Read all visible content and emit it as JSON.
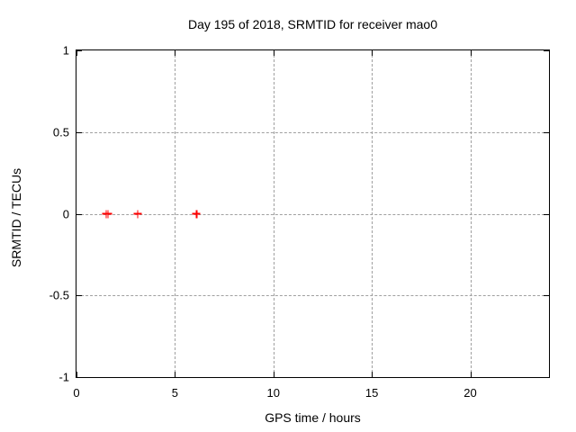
{
  "chart_data": {
    "type": "scatter",
    "title": "Day 195 of 2018, SRMTID for receiver mao0",
    "xlabel": "GPS time / hours",
    "ylabel": "SRMTID / TECUs",
    "xlim": [
      0,
      24
    ],
    "ylim": [
      -1,
      1
    ],
    "grid": true,
    "legend_position": "none",
    "xticks": [
      {
        "value": 0,
        "label": "0"
      },
      {
        "value": 5,
        "label": "5"
      },
      {
        "value": 10,
        "label": "10"
      },
      {
        "value": 15,
        "label": "15"
      },
      {
        "value": 20,
        "label": "20"
      }
    ],
    "yticks": [
      {
        "value": 1,
        "label": "1"
      },
      {
        "value": 0.5,
        "label": "0.5"
      },
      {
        "value": 0,
        "label": "0"
      },
      {
        "value": -0.5,
        "label": "-0.5"
      },
      {
        "value": -1,
        "label": "-1"
      }
    ],
    "series": [
      {
        "name": "SRMTID",
        "marker": "plus",
        "color": "#ff0000",
        "points": [
          {
            "x": 1.5,
            "y": 0
          },
          {
            "x": 1.6,
            "y": 0
          },
          {
            "x": 3.1,
            "y": 0
          },
          {
            "x": 6.1,
            "y": 0
          }
        ]
      }
    ]
  },
  "colors": {
    "background": "#ffffff",
    "border": "#000000",
    "grid": "#a0a0a0",
    "marker": "#ff0000",
    "text": "#000000"
  }
}
